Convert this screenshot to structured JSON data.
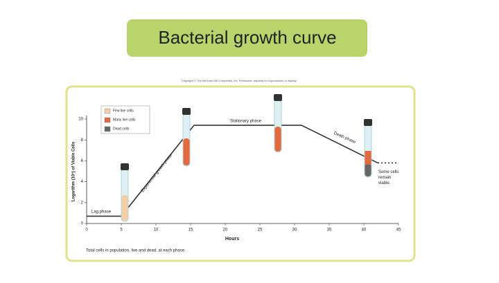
{
  "slide_title": "Bacterial growth curve",
  "copyright": "Copyright © The McGraw-Hill Companies, Inc. Permission required for reproduction or display.",
  "chart_data": {
    "type": "line",
    "x_label": "Hours",
    "y_label": "Logarithm (10ⁿ) of Viable Cells",
    "caption": "Total cells in population, live and dead, at each phase.",
    "xlim": [
      0,
      45
    ],
    "xticks": [
      0,
      5,
      10,
      15,
      20,
      25,
      30,
      35,
      40,
      45
    ],
    "ylim": [
      0,
      10
    ],
    "yticks": [
      0,
      2,
      4,
      6,
      8,
      10
    ],
    "series": [
      {
        "color": "#333333",
        "x": [
          0,
          5,
          15.5,
          31,
          42
        ],
        "values": [
          0.7,
          0.7,
          9.4,
          9.4,
          5.8
        ]
      },
      {
        "color": "#333333",
        "dashed": true,
        "x": [
          42,
          45
        ],
        "values": [
          5.8,
          5.8
        ]
      }
    ],
    "legend": [
      {
        "name": "Few live cells",
        "color": "#f4cfa6"
      },
      {
        "name": "Many live cells",
        "color": "#e4693e"
      },
      {
        "name": "Dead cells",
        "color": "#666666"
      }
    ],
    "annotations": [
      "Lag phase",
      "Exponential growth phase",
      "Stationary phase",
      "Death phase",
      "Some cells remain viable."
    ]
  }
}
